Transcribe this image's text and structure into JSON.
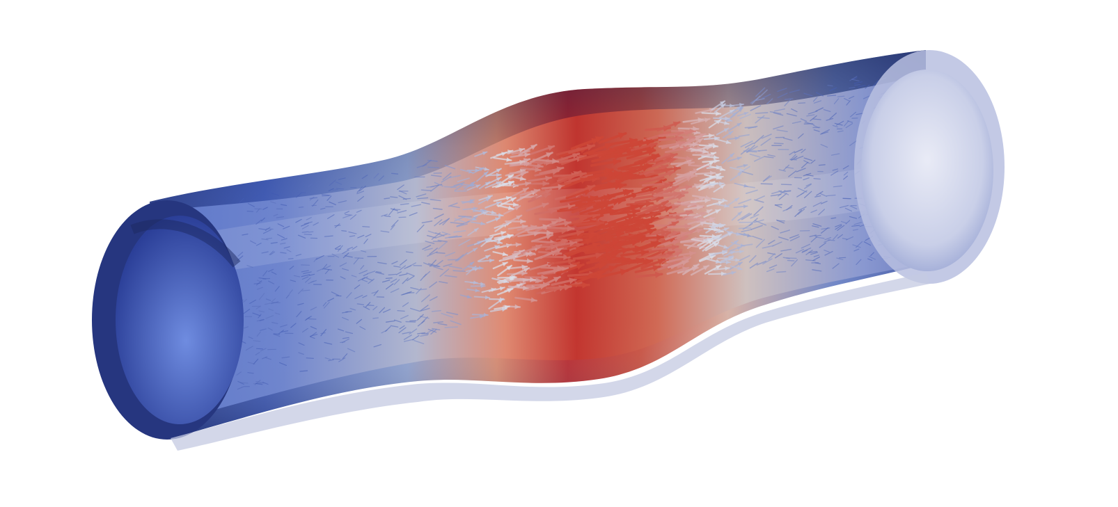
{
  "scene": {
    "subject": "pipe-with-stenosis-velocity-vectors",
    "background_color": "#ffffff",
    "colormap": {
      "low": "#3b4cc0",
      "mid": "#dddddd",
      "high": "#b40426"
    },
    "vector_glyph": "arrow",
    "flow_direction": "left-to-right"
  }
}
